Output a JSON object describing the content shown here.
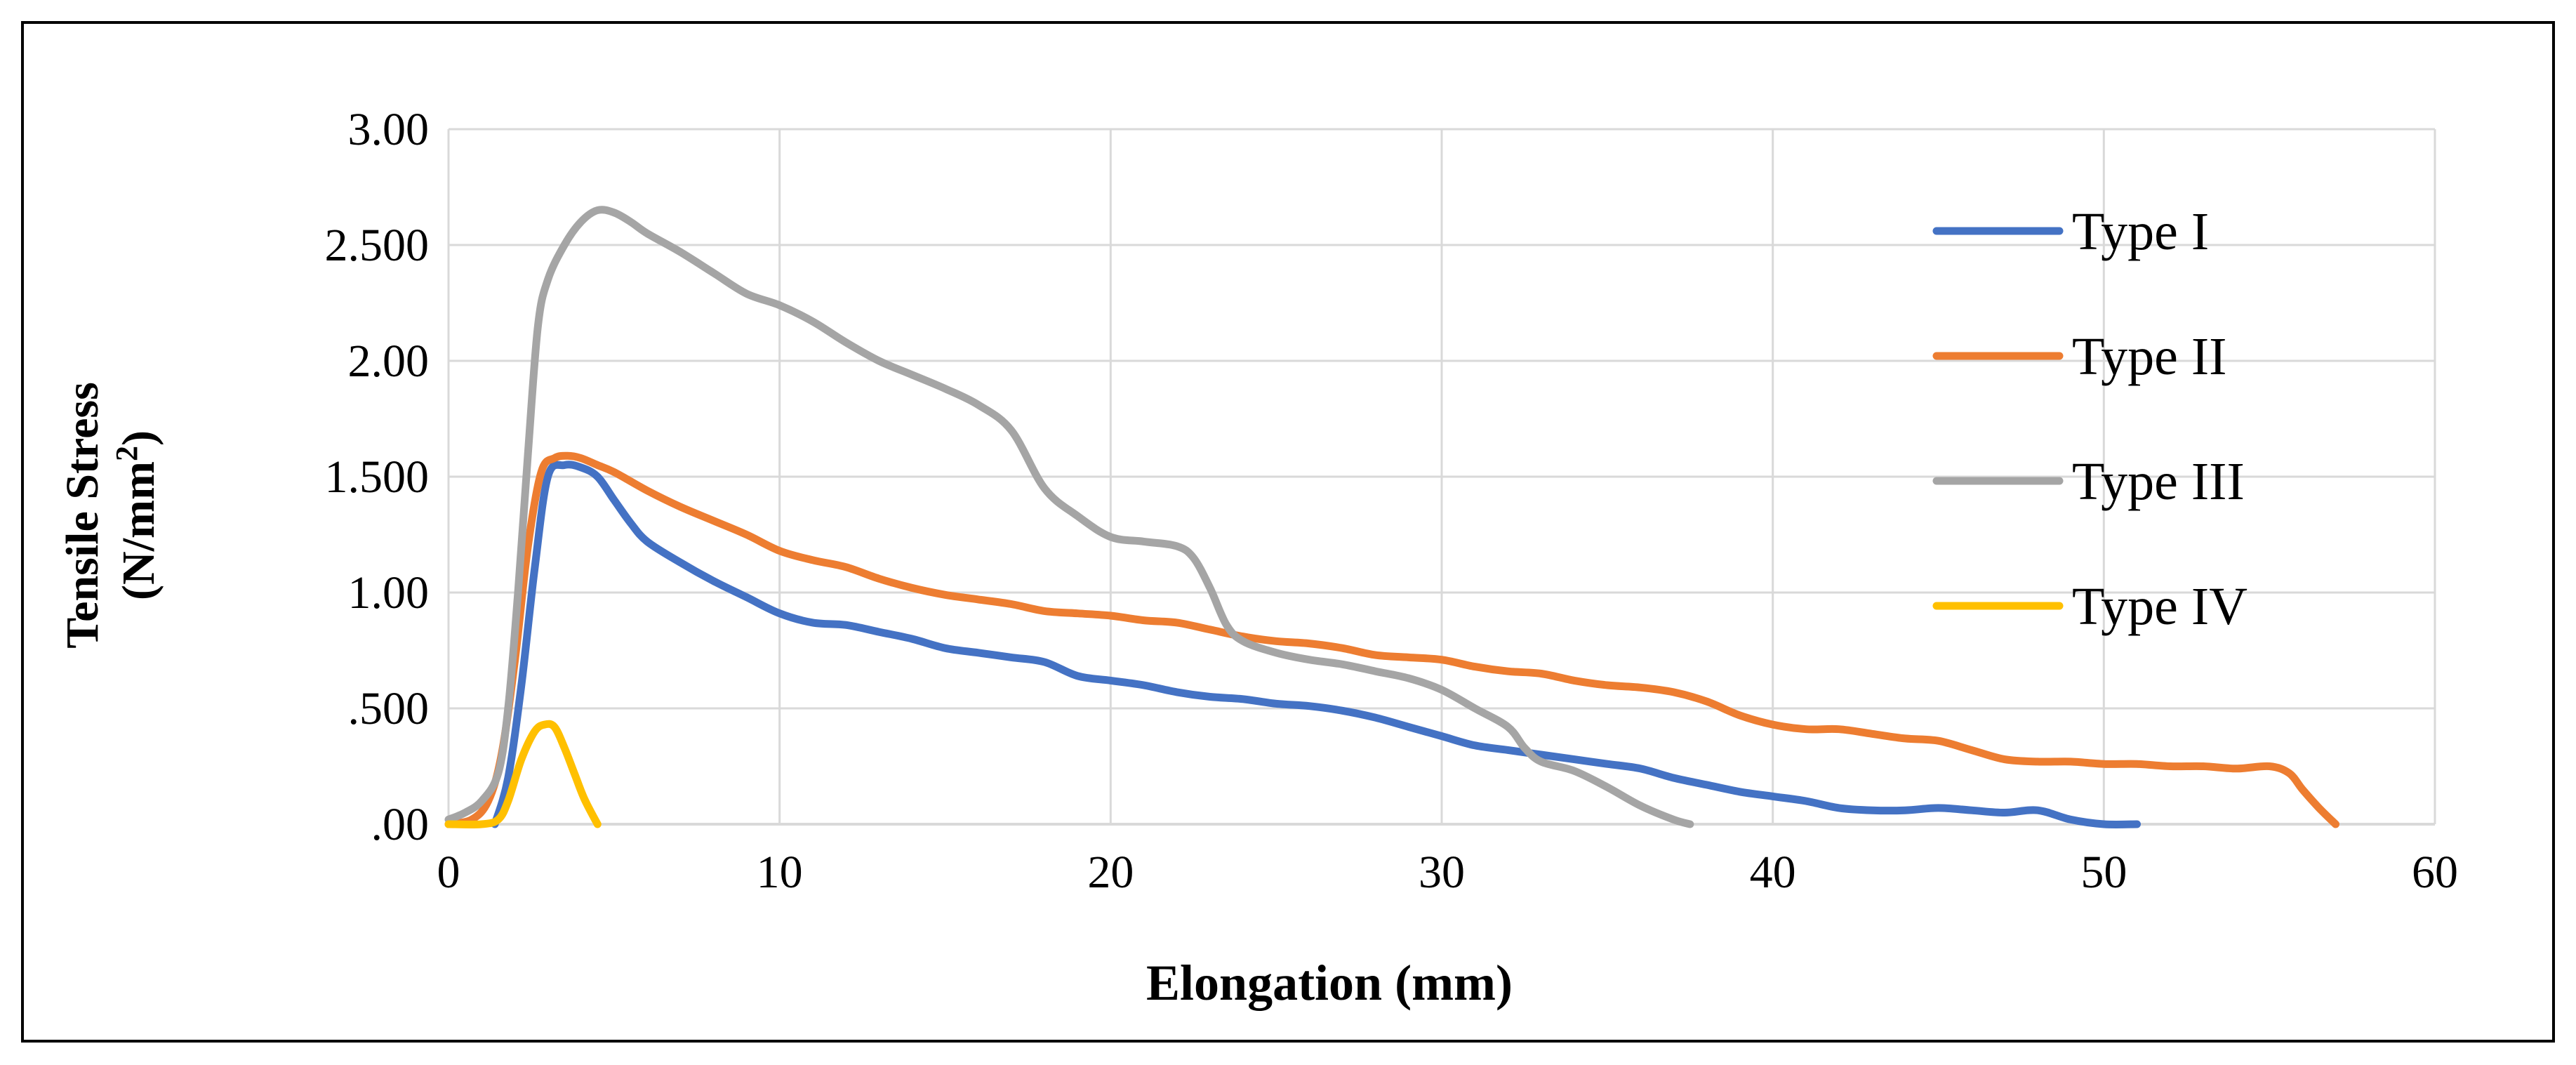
{
  "chart_data": {
    "type": "line",
    "title": "",
    "xlabel": "Elongation (mm)",
    "ylabel_line1": "Tensile Stress",
    "ylabel_line2": "(N/mm",
    "ylabel_sup": "2",
    "ylabel_close": ")",
    "xlim": [
      0,
      60
    ],
    "ylim": [
      0,
      3
    ],
    "x_ticks": [
      0,
      10,
      20,
      30,
      40,
      50,
      60
    ],
    "x_tick_labels": [
      "0",
      "10",
      "20",
      "30",
      "40",
      "50",
      "60"
    ],
    "y_ticks": [
      0,
      0.5,
      1,
      1.5,
      2,
      2.5,
      3
    ],
    "y_tick_labels": [
      ".00",
      ".500",
      "1.00",
      "1.500",
      "2.00",
      "2.500",
      "3.00"
    ],
    "grid": true,
    "legend_position": "right",
    "series": [
      {
        "name": "Type I",
        "color": "#4472C4",
        "points": [
          [
            1.4,
            0
          ],
          [
            1.8,
            0.2
          ],
          [
            2.2,
            0.6
          ],
          [
            2.6,
            1.1
          ],
          [
            3,
            1.5
          ],
          [
            3.5,
            1.55
          ],
          [
            4,
            1.54
          ],
          [
            4.5,
            1.5
          ],
          [
            5,
            1.4
          ],
          [
            5.5,
            1.3
          ],
          [
            6,
            1.22
          ],
          [
            7,
            1.13
          ],
          [
            8,
            1.05
          ],
          [
            9,
            0.98
          ],
          [
            10,
            0.91
          ],
          [
            11,
            0.87
          ],
          [
            12,
            0.86
          ],
          [
            13,
            0.83
          ],
          [
            14,
            0.8
          ],
          [
            15,
            0.76
          ],
          [
            16,
            0.74
          ],
          [
            17,
            0.72
          ],
          [
            18,
            0.7
          ],
          [
            19,
            0.64
          ],
          [
            20,
            0.62
          ],
          [
            21,
            0.6
          ],
          [
            22,
            0.57
          ],
          [
            23,
            0.55
          ],
          [
            24,
            0.54
          ],
          [
            25,
            0.52
          ],
          [
            26,
            0.51
          ],
          [
            27,
            0.49
          ],
          [
            28,
            0.46
          ],
          [
            29,
            0.42
          ],
          [
            30,
            0.38
          ],
          [
            31,
            0.34
          ],
          [
            32,
            0.32
          ],
          [
            33,
            0.3
          ],
          [
            34,
            0.28
          ],
          [
            35,
            0.26
          ],
          [
            36,
            0.24
          ],
          [
            37,
            0.2
          ],
          [
            38,
            0.17
          ],
          [
            39,
            0.14
          ],
          [
            40,
            0.12
          ],
          [
            41,
            0.1
          ],
          [
            42,
            0.07
          ],
          [
            43,
            0.06
          ],
          [
            44,
            0.06
          ],
          [
            45,
            0.07
          ],
          [
            46,
            0.06
          ],
          [
            47,
            0.05
          ],
          [
            48,
            0.06
          ],
          [
            49,
            0.02
          ],
          [
            50,
            0
          ],
          [
            51,
            0
          ]
        ]
      },
      {
        "name": "Type II",
        "color": "#ED7D31",
        "points": [
          [
            0,
            0
          ],
          [
            0.7,
            0.02
          ],
          [
            1.2,
            0.1
          ],
          [
            1.6,
            0.3
          ],
          [
            2,
            0.7
          ],
          [
            2.4,
            1.2
          ],
          [
            2.8,
            1.52
          ],
          [
            3.2,
            1.58
          ],
          [
            3.6,
            1.59
          ],
          [
            4,
            1.58
          ],
          [
            4.5,
            1.55
          ],
          [
            5,
            1.52
          ],
          [
            6,
            1.44
          ],
          [
            7,
            1.37
          ],
          [
            8,
            1.31
          ],
          [
            9,
            1.25
          ],
          [
            10,
            1.18
          ],
          [
            11,
            1.14
          ],
          [
            12,
            1.11
          ],
          [
            13,
            1.06
          ],
          [
            14,
            1.02
          ],
          [
            15,
            0.99
          ],
          [
            16,
            0.97
          ],
          [
            17,
            0.95
          ],
          [
            18,
            0.92
          ],
          [
            19,
            0.91
          ],
          [
            20,
            0.9
          ],
          [
            21,
            0.88
          ],
          [
            22,
            0.87
          ],
          [
            23,
            0.84
          ],
          [
            24,
            0.81
          ],
          [
            25,
            0.79
          ],
          [
            26,
            0.78
          ],
          [
            27,
            0.76
          ],
          [
            28,
            0.73
          ],
          [
            29,
            0.72
          ],
          [
            30,
            0.71
          ],
          [
            31,
            0.68
          ],
          [
            32,
            0.66
          ],
          [
            33,
            0.65
          ],
          [
            34,
            0.62
          ],
          [
            35,
            0.6
          ],
          [
            36,
            0.59
          ],
          [
            37,
            0.57
          ],
          [
            38,
            0.53
          ],
          [
            39,
            0.47
          ],
          [
            40,
            0.43
          ],
          [
            41,
            0.41
          ],
          [
            42,
            0.41
          ],
          [
            43,
            0.39
          ],
          [
            44,
            0.37
          ],
          [
            45,
            0.36
          ],
          [
            46,
            0.32
          ],
          [
            47,
            0.28
          ],
          [
            48,
            0.27
          ],
          [
            49,
            0.27
          ],
          [
            50,
            0.26
          ],
          [
            51,
            0.26
          ],
          [
            52,
            0.25
          ],
          [
            53,
            0.25
          ],
          [
            54,
            0.24
          ],
          [
            55,
            0.25
          ],
          [
            55.6,
            0.22
          ],
          [
            56,
            0.15
          ],
          [
            56.5,
            0.07
          ],
          [
            57,
            0
          ]
        ]
      },
      {
        "name": "Type III",
        "color": "#A5A5A5",
        "points": [
          [
            0,
            0.02
          ],
          [
            0.5,
            0.05
          ],
          [
            1,
            0.1
          ],
          [
            1.5,
            0.22
          ],
          [
            1.8,
            0.5
          ],
          [
            2.1,
            1
          ],
          [
            2.4,
            1.6
          ],
          [
            2.7,
            2.15
          ],
          [
            3,
            2.35
          ],
          [
            3.5,
            2.5
          ],
          [
            4,
            2.6
          ],
          [
            4.5,
            2.65
          ],
          [
            5,
            2.64
          ],
          [
            5.5,
            2.6
          ],
          [
            6,
            2.55
          ],
          [
            7,
            2.47
          ],
          [
            8,
            2.38
          ],
          [
            9,
            2.29
          ],
          [
            10,
            2.24
          ],
          [
            11,
            2.17
          ],
          [
            12,
            2.08
          ],
          [
            13,
            2
          ],
          [
            14,
            1.94
          ],
          [
            15,
            1.88
          ],
          [
            16,
            1.81
          ],
          [
            17,
            1.7
          ],
          [
            18,
            1.45
          ],
          [
            19,
            1.33
          ],
          [
            20,
            1.24
          ],
          [
            21,
            1.22
          ],
          [
            22,
            1.2
          ],
          [
            22.5,
            1.15
          ],
          [
            23,
            1.02
          ],
          [
            23.5,
            0.86
          ],
          [
            24,
            0.79
          ],
          [
            25,
            0.74
          ],
          [
            26,
            0.71
          ],
          [
            27,
            0.69
          ],
          [
            28,
            0.66
          ],
          [
            29,
            0.63
          ],
          [
            30,
            0.58
          ],
          [
            31,
            0.5
          ],
          [
            32,
            0.42
          ],
          [
            32.5,
            0.33
          ],
          [
            33,
            0.27
          ],
          [
            34,
            0.23
          ],
          [
            35,
            0.16
          ],
          [
            36,
            0.08
          ],
          [
            37,
            0.02
          ],
          [
            37.5,
            0
          ]
        ]
      },
      {
        "name": "Type IV",
        "color": "#FFC000",
        "points": [
          [
            0,
            0
          ],
          [
            1,
            0
          ],
          [
            1.5,
            0.02
          ],
          [
            1.8,
            0.1
          ],
          [
            2.2,
            0.28
          ],
          [
            2.6,
            0.4
          ],
          [
            2.9,
            0.43
          ],
          [
            3.2,
            0.42
          ],
          [
            3.5,
            0.33
          ],
          [
            3.8,
            0.22
          ],
          [
            4.1,
            0.11
          ],
          [
            4.5,
            0
          ]
        ]
      }
    ]
  }
}
